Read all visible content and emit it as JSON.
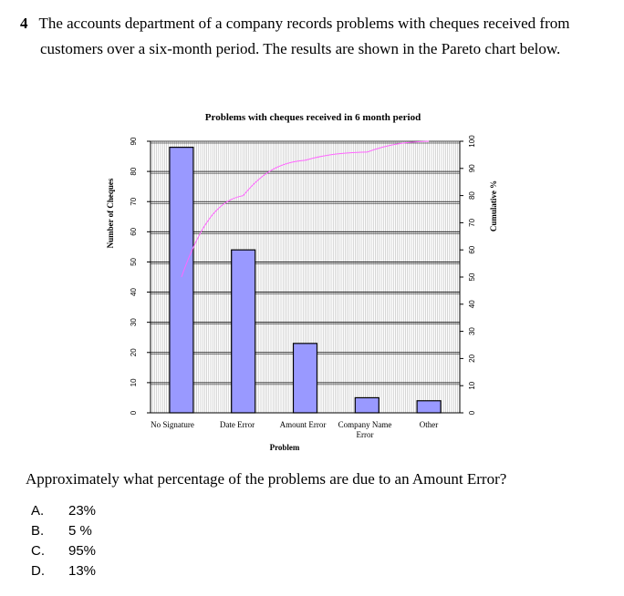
{
  "question": {
    "number": "4",
    "line1": "The accounts department of a company records problems with cheques received from",
    "line2": "customers over a six-month period. The results are shown in the Pareto chart below.",
    "prompt": "Approximately what percentage of the problems are due to an Amount Error?",
    "options": [
      {
        "letter": "A.",
        "text": "23%"
      },
      {
        "letter": "B.",
        "text": "5 %"
      },
      {
        "letter": "C.",
        "text": "95%"
      },
      {
        "letter": "D.",
        "text": "13%"
      }
    ]
  },
  "chart_data": {
    "type": "bar",
    "title": "Problems with cheques received in 6 month period",
    "xlabel": "Problem",
    "ylabel": "Number of Cheques",
    "y2label": "Cumulative %",
    "categories": [
      {
        "line1": "No Signature",
        "line2": ""
      },
      {
        "line1": "Date Error",
        "line2": ""
      },
      {
        "line1": "Amount Error",
        "line2": ""
      },
      {
        "line1": "Company Name",
        "line2": "Error"
      },
      {
        "line1": "Other",
        "line2": ""
      }
    ],
    "values": [
      88,
      54,
      23,
      5,
      4
    ],
    "cumulative": [
      50,
      80,
      93,
      96,
      100
    ],
    "ylim": [
      0,
      90
    ],
    "y2lim": [
      0,
      100
    ],
    "yticks": [
      0,
      10,
      20,
      30,
      40,
      50,
      60,
      70,
      80,
      90
    ],
    "y2ticks": [
      0,
      10,
      20,
      30,
      40,
      50,
      60,
      70,
      80,
      90,
      100
    ],
    "bar_color": "#9999ff",
    "line_color": "#ff66ff",
    "grid": true
  }
}
